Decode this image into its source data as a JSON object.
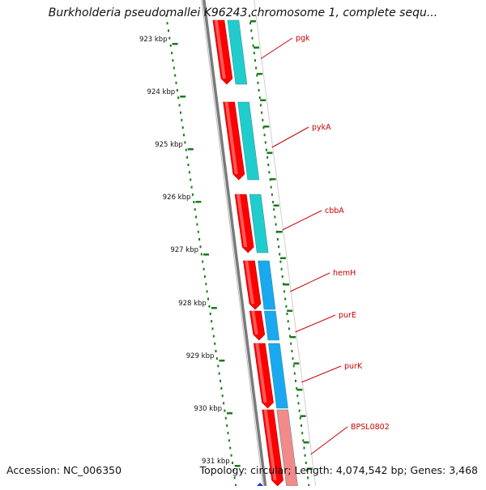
{
  "title": "Burkholderia pseudomallei K96243 chromosome 1, complete sequ...",
  "footer": {
    "accession": "Accession: NC_006350",
    "summary": "Topology: circular; Length: 4,074,542 bp; Genes: 3,468"
  },
  "colors": {
    "backbone": "#7a7a7a",
    "strand_forward": "#ff0000",
    "cds_teal": "#20cccc",
    "cds_blue": "#1aa8f0",
    "cds_pink": "#f28a8a",
    "tick": "#1a7a1a",
    "gene_label": "#cc0000"
  },
  "ruler": {
    "labels": [
      "923 kbp",
      "924 kbp",
      "925 kbp",
      "926 kbp",
      "927 kbp",
      "928 kbp",
      "929 kbp",
      "930 kbp",
      "931 kbp"
    ]
  },
  "genes": [
    {
      "name": "pgk",
      "cds_color": "teal"
    },
    {
      "name": "pykA",
      "cds_color": "teal"
    },
    {
      "name": "cbbA",
      "cds_color": "teal"
    },
    {
      "name": "hemH",
      "cds_color": "blue"
    },
    {
      "name": "purE",
      "cds_color": "blue"
    },
    {
      "name": "purK",
      "cds_color": "blue"
    },
    {
      "name": "BPSL0802",
      "cds_color": "pink"
    }
  ]
}
